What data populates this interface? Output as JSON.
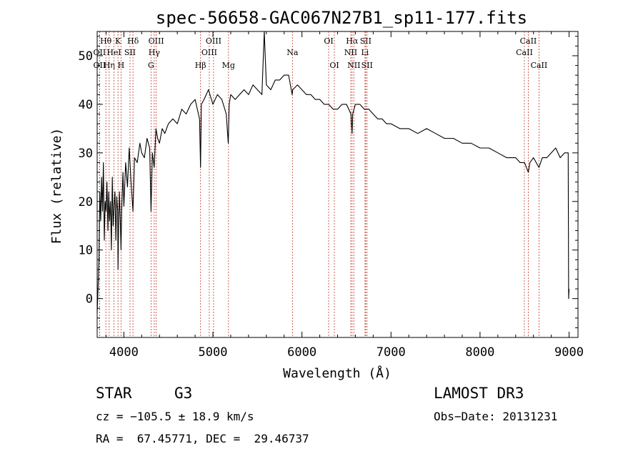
{
  "chart_data": {
    "type": "line",
    "title": "spec-56658-GAC067N27B1_sp11-177.fits",
    "xlabel": "Wavelength (Å)",
    "ylabel": "Flux (relative)",
    "xlim": [
      3700,
      9100
    ],
    "ylim": [
      -8,
      55
    ],
    "xticks": [
      4000,
      5000,
      6000,
      7000,
      8000,
      9000
    ],
    "yticks": [
      0,
      10,
      20,
      30,
      40,
      50
    ],
    "series": [
      {
        "name": "flux",
        "color": "#000000",
        "x": [
          3700,
          3710,
          3720,
          3730,
          3740,
          3750,
          3760,
          3770,
          3780,
          3790,
          3800,
          3810,
          3820,
          3830,
          3840,
          3850,
          3860,
          3870,
          3880,
          3890,
          3900,
          3910,
          3920,
          3930,
          3934,
          3940,
          3950,
          3960,
          3968,
          3975,
          3990,
          4000,
          4020,
          4040,
          4060,
          4080,
          4102,
          4120,
          4150,
          4180,
          4200,
          4230,
          4260,
          4290,
          4305,
          4320,
          4340,
          4360,
          4380,
          4400,
          4430,
          4460,
          4500,
          4550,
          4600,
          4650,
          4700,
          4750,
          4800,
          4850,
          4861,
          4870,
          4900,
          4950,
          5000,
          5050,
          5100,
          5150,
          5172,
          5183,
          5200,
          5250,
          5300,
          5350,
          5400,
          5450,
          5500,
          5550,
          5577,
          5600,
          5650,
          5700,
          5750,
          5800,
          5850,
          5890,
          5896,
          5950,
          6000,
          6050,
          6100,
          6150,
          6200,
          6250,
          6300,
          6350,
          6400,
          6450,
          6500,
          6550,
          6563,
          6570,
          6600,
          6650,
          6700,
          6750,
          6800,
          6850,
          6900,
          6950,
          7000,
          7100,
          7200,
          7300,
          7400,
          7500,
          7600,
          7700,
          7800,
          7900,
          8000,
          8100,
          8200,
          8300,
          8400,
          8450,
          8500,
          8542,
          8560,
          8600,
          8662,
          8700,
          8750,
          8800,
          8850,
          8900,
          8950,
          8990,
          8995,
          9000
        ],
        "y": [
          -3,
          2,
          8,
          22,
          16,
          25,
          18,
          28,
          12,
          20,
          18,
          24,
          14,
          22,
          16,
          20,
          10,
          25,
          15,
          19,
          22,
          12,
          21,
          18,
          6,
          14,
          22,
          16,
          10,
          18,
          26,
          19,
          28,
          23,
          31,
          24,
          18,
          29,
          28,
          32,
          30,
          29,
          33,
          31,
          18,
          30,
          27,
          35,
          33,
          32,
          35,
          34,
          36,
          37,
          36,
          39,
          38,
          40,
          41,
          37,
          27,
          40,
          41,
          43,
          40,
          42,
          41,
          38,
          32,
          40,
          42,
          41,
          42,
          43,
          42,
          44,
          43,
          42,
          55,
          44,
          43,
          45,
          45,
          46,
          46,
          42,
          43,
          44,
          43,
          42,
          42,
          41,
          41,
          40,
          40,
          39,
          39,
          40,
          40,
          38,
          34,
          38,
          40,
          40,
          39,
          39,
          38,
          37,
          37,
          36,
          36,
          35,
          35,
          34,
          35,
          34,
          33,
          33,
          32,
          32,
          31,
          31,
          30,
          29,
          29,
          28,
          28,
          26,
          28,
          29,
          27,
          29,
          29,
          30,
          31,
          29,
          30,
          30,
          0,
          2
        ]
      }
    ],
    "lines": [
      {
        "name": "Hθ",
        "x": 3798,
        "row": 1
      },
      {
        "name": "OII",
        "x": 3727,
        "row": 3
      },
      {
        "name": "OII",
        "x": 3727,
        "row": 2
      },
      {
        "name": "Hη",
        "x": 3835,
        "row": 3
      },
      {
        "name": "HeI",
        "x": 3889,
        "row": 2
      },
      {
        "name": "K",
        "x": 3934,
        "row": 1
      },
      {
        "name": "SII",
        "x": 4069,
        "row": 2
      },
      {
        "name": "H",
        "x": 3968,
        "row": 3
      },
      {
        "name": "Hδ",
        "x": 4102,
        "row": 1
      },
      {
        "name": "OIII",
        "x": 4363,
        "row": 1
      },
      {
        "name": "Hγ",
        "x": 4341,
        "row": 2
      },
      {
        "name": "G",
        "x": 4305,
        "row": 3
      },
      {
        "name": "OIII",
        "x": 5007,
        "row": 1
      },
      {
        "name": "OIII",
        "x": 4959,
        "row": 2
      },
      {
        "name": "Hβ",
        "x": 4861,
        "row": 3
      },
      {
        "name": "Mg",
        "x": 5175,
        "row": 3
      },
      {
        "name": "Na",
        "x": 5893,
        "row": 2
      },
      {
        "name": "OI",
        "x": 6300,
        "row": 1
      },
      {
        "name": "OI",
        "x": 6364,
        "row": 3
      },
      {
        "name": "Hα",
        "x": 6563,
        "row": 1
      },
      {
        "name": "NII",
        "x": 6548,
        "row": 2
      },
      {
        "name": "NII",
        "x": 6583,
        "row": 3
      },
      {
        "name": "SII",
        "x": 6716,
        "row": 1
      },
      {
        "name": "Li",
        "x": 6708,
        "row": 2
      },
      {
        "name": "SII",
        "x": 6731,
        "row": 3
      },
      {
        "name": "CaII",
        "x": 8542,
        "row": 1
      },
      {
        "name": "CaII",
        "x": 8498,
        "row": 2
      },
      {
        "name": "CaII",
        "x": 8662,
        "row": 3
      }
    ]
  },
  "footer": {
    "object_type": "STAR",
    "spectral_class": "G3",
    "survey": "LAMOST DR3",
    "cz": "cz = −105.5 ± 18.9 km/s",
    "obs_date": "Obs−Date: 20131231",
    "coords": "RA =  67.45771, DEC =  29.46737"
  }
}
